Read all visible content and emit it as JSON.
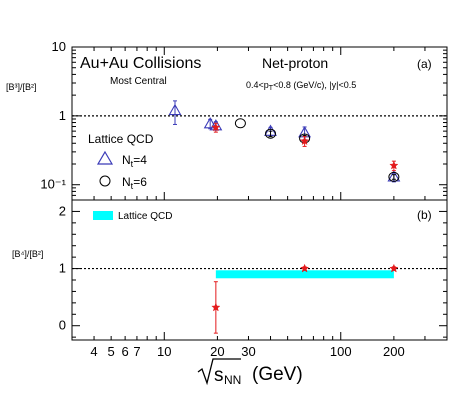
{
  "chart_data": [
    {
      "panel": "(a)",
      "type": "scatter",
      "y_scale": "log",
      "ylim": [
        0.06,
        10
      ],
      "ylabel": "[B³]/[B²]",
      "y_ticks": [
        "10",
        "1",
        "10⁻¹"
      ],
      "texts": {
        "experiment": "Au+Au Collisions",
        "centrality": "Most Central",
        "observable": "Net-proton",
        "kinematics": "0.4<p_T<0.8 (GeV/c), |y|<0.5",
        "kin_prefix": "0.4<p",
        "kin_sub": "T",
        "kin_suffix": "<0.8 (GeV/c), |y|<0.5",
        "panel_tag": "(a)",
        "legend_title": "Lattice QCD",
        "legend_nt4": "N",
        "legend_nt4_sub": "t",
        "legend_nt4_val": "=4",
        "legend_nt6": "N",
        "legend_nt6_sub": "t",
        "legend_nt6_val": "=6"
      },
      "reference_line": 1,
      "series": [
        {
          "kind": "data",
          "color": "#e31a1c",
          "points": [
            {
              "x": 19.6,
              "y": 0.68,
              "err": 0.1
            },
            {
              "x": 62.4,
              "y": 0.43,
              "err": 0.07
            },
            {
              "x": 200,
              "y": 0.19,
              "err": 0.03
            }
          ]
        },
        {
          "kind": "lattice-nt4",
          "color": "#3b3bb8",
          "points": [
            {
              "x": 11.5,
              "y": 1.2,
              "err": 0.45
            },
            {
              "x": 18.2,
              "y": 0.77,
              "err": 0.12
            },
            {
              "x": 19.6,
              "y": 0.72,
              "err": 0.1
            },
            {
              "x": 40,
              "y": 0.6,
              "err": 0.08
            },
            {
              "x": 62.4,
              "y": 0.57,
              "err": 0.12
            },
            {
              "x": 200,
              "y": 0.13,
              "err": 0.02
            }
          ]
        },
        {
          "kind": "lattice-nt6",
          "color": "#000000",
          "points": [
            {
              "x": 27,
              "y": 0.78,
              "err": 0
            },
            {
              "x": 40,
              "y": 0.55,
              "err": 0.05
            },
            {
              "x": 62.4,
              "y": 0.47,
              "err": 0.05
            },
            {
              "x": 200,
              "y": 0.13,
              "err": 0.01
            }
          ]
        }
      ]
    },
    {
      "panel": "(b)",
      "type": "scatter",
      "y_scale": "linear",
      "ylim": [
        -0.25,
        2.2
      ],
      "ylabel": "[B⁴]/[B²]",
      "y_ticks": [
        "2",
        "1",
        "0"
      ],
      "texts": {
        "legend_band": "Lattice QCD",
        "panel_tag": "(b)"
      },
      "reference_line": 1,
      "band": {
        "color": "#00ffff",
        "x": [
          19.6,
          200
        ],
        "y": 0.9,
        "height": 0.14
      },
      "series": [
        {
          "kind": "data",
          "color": "#e31a1c",
          "points": [
            {
              "x": 19.6,
              "y": 0.32,
              "err": 0.45
            },
            {
              "x": 62.4,
              "y": 1.0,
              "err": 0.03
            },
            {
              "x": 200,
              "y": 1.0,
              "err": 0.03
            }
          ]
        }
      ]
    }
  ],
  "x_axis": {
    "scale": "log",
    "xlim": [
      3,
      400
    ],
    "tick_labels": [
      "4",
      "5",
      "6",
      "7",
      "10",
      "20",
      "30",
      "100",
      "200"
    ],
    "tick_values": [
      4,
      5,
      6,
      7,
      10,
      20,
      30,
      100,
      200
    ],
    "label_rest": "(GeV)",
    "label_sqrt_sub": "NN",
    "label_sqrt_s": "s"
  }
}
